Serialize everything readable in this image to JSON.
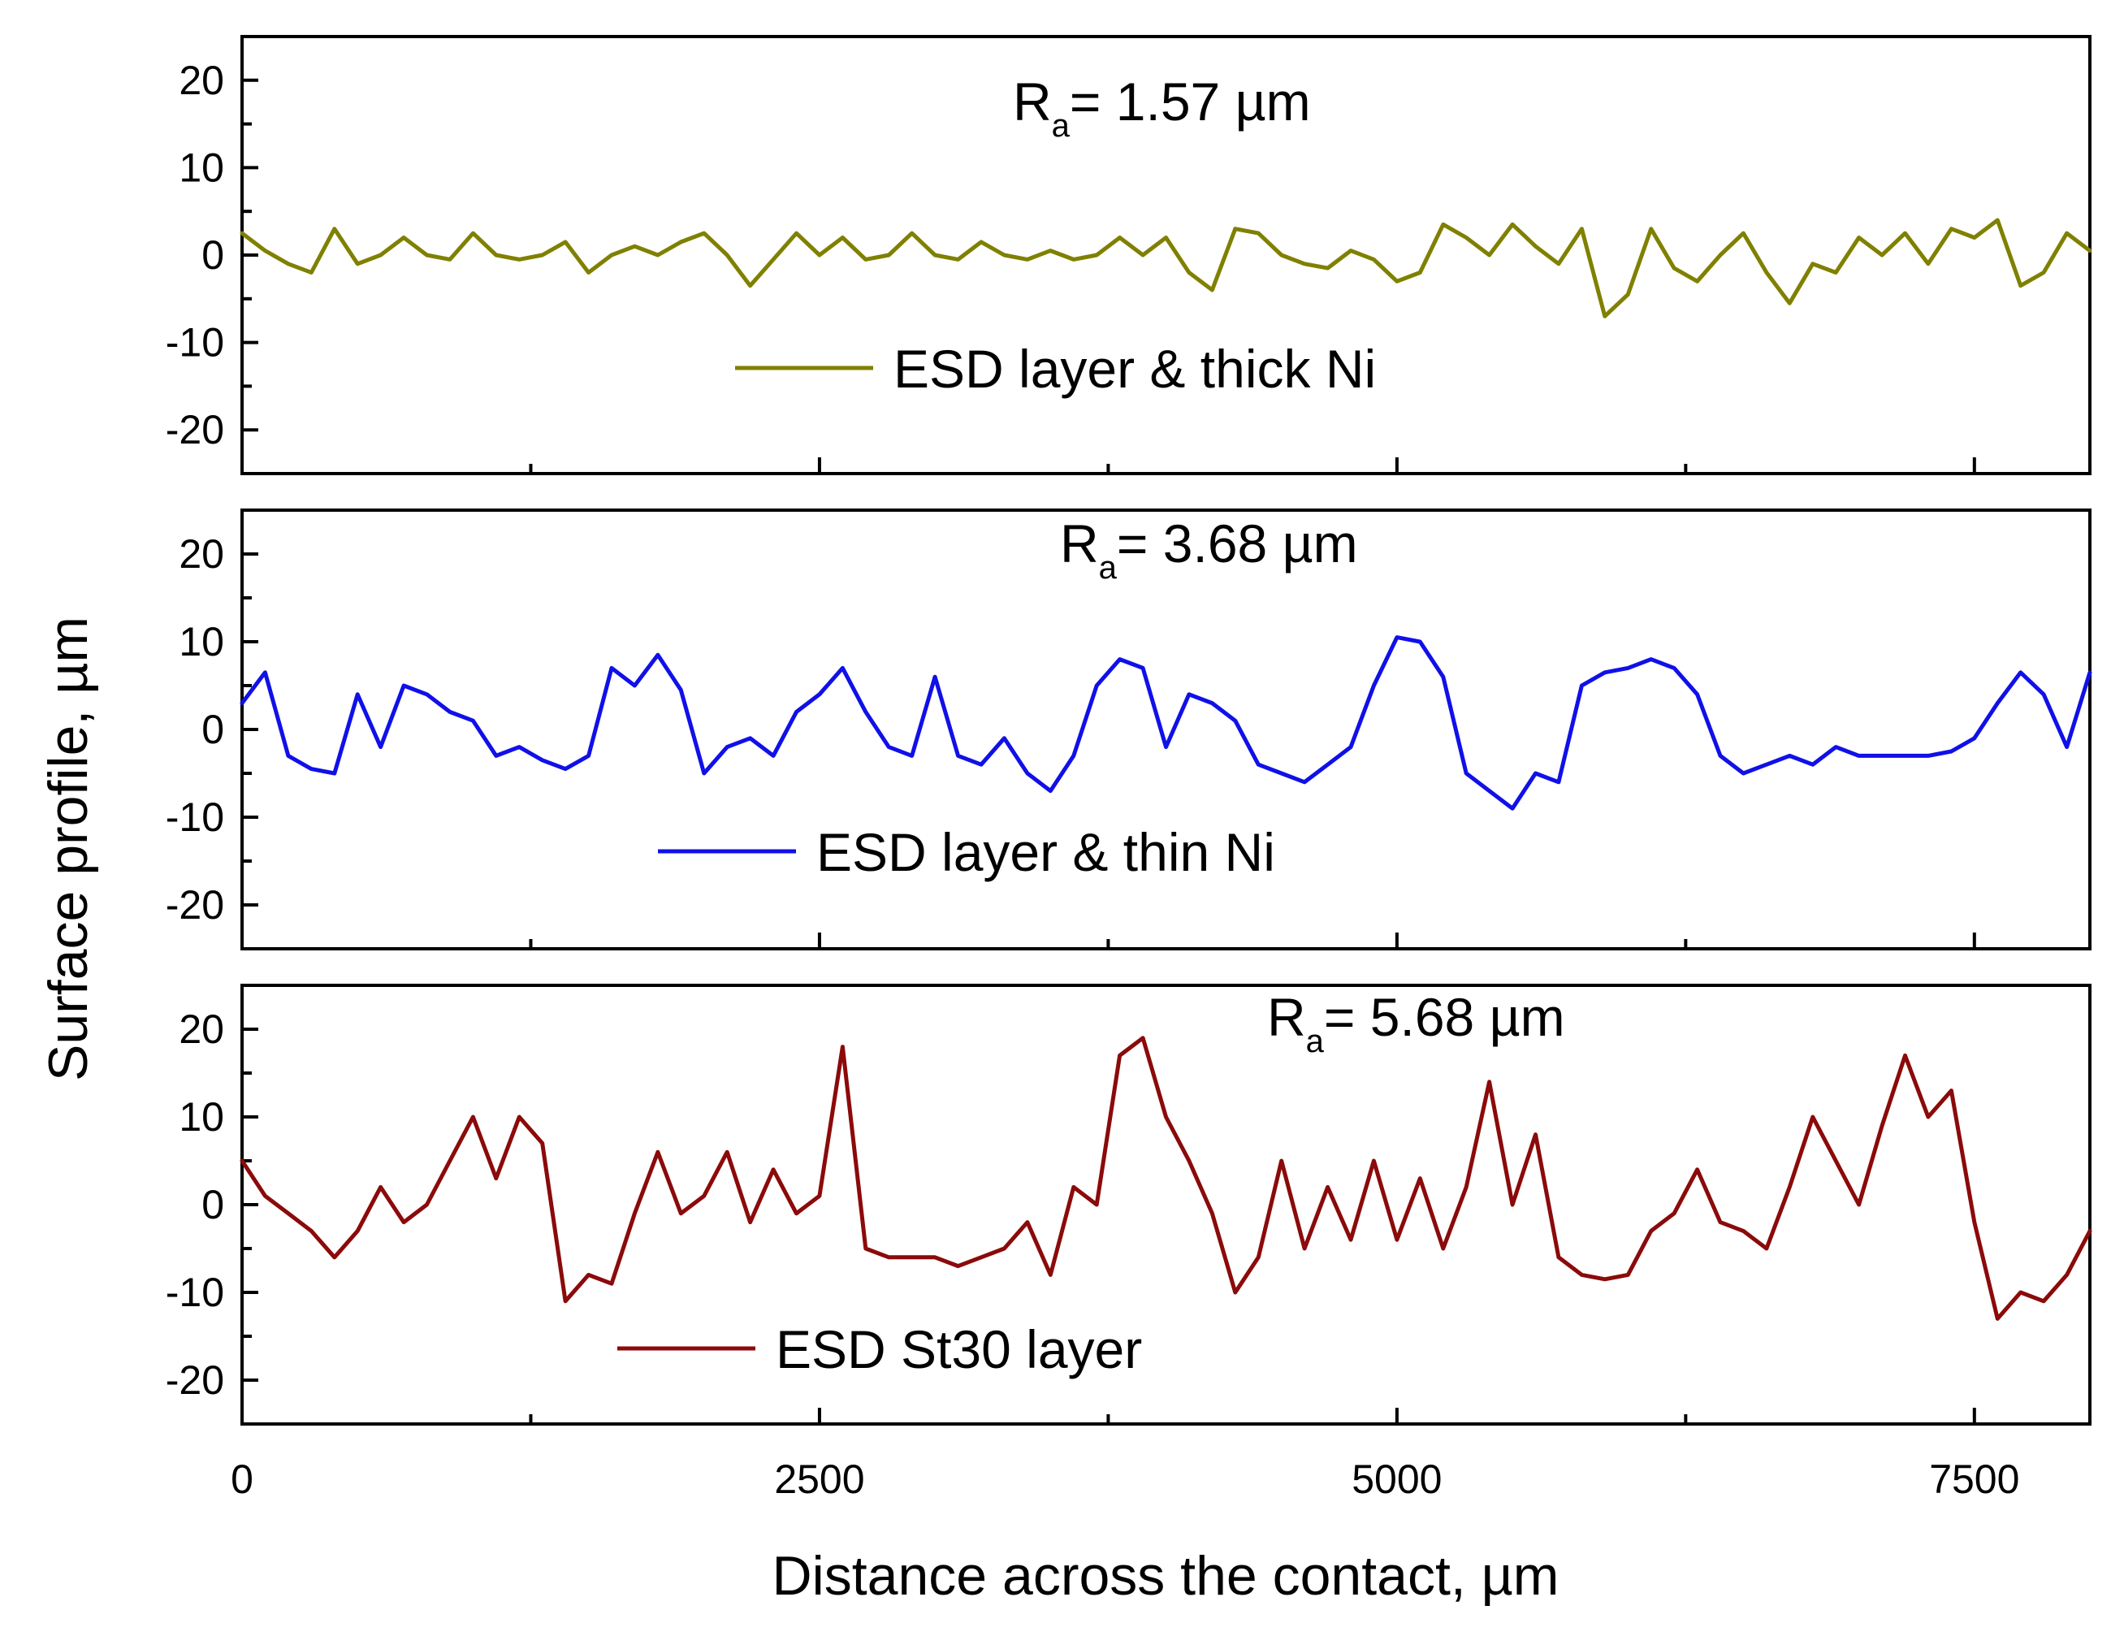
{
  "chart_data": {
    "type": "line",
    "layout": "stacked-panels",
    "xlabel": "Distance across the contact, µm",
    "ylabel": "Surface profile, µm",
    "xlim": [
      0,
      8000
    ],
    "ylim": [
      -25,
      25
    ],
    "xticks": [
      0,
      2500,
      5000,
      7500
    ],
    "xtick_labels": [
      "0",
      "2500",
      "5000",
      "7500"
    ],
    "yticks": [
      -20,
      -10,
      0,
      10,
      20
    ],
    "ytick_labels": [
      "-20",
      "-10",
      "0",
      "10",
      "20"
    ],
    "panels": [
      {
        "series_name": "ESD layer & thick Ni",
        "color": "#808000",
        "ra_symbol": "R",
        "ra_subscript": "a",
        "ra_value": "= 1.57 µm",
        "x": [
          0,
          100,
          200,
          300,
          400,
          500,
          600,
          700,
          800,
          900,
          1000,
          1100,
          1200,
          1300,
          1400,
          1500,
          1600,
          1700,
          1800,
          1900,
          2000,
          2100,
          2200,
          2300,
          2400,
          2500,
          2600,
          2700,
          2800,
          2900,
          3000,
          3100,
          3200,
          3300,
          3400,
          3500,
          3600,
          3700,
          3800,
          3900,
          4000,
          4100,
          4200,
          4300,
          4400,
          4500,
          4600,
          4700,
          4800,
          4900,
          5000,
          5100,
          5200,
          5300,
          5400,
          5500,
          5600,
          5700,
          5800,
          5900,
          6000,
          6100,
          6200,
          6300,
          6400,
          6500,
          6600,
          6700,
          6800,
          6900,
          7000,
          7100,
          7200,
          7300,
          7400,
          7500,
          7600,
          7700,
          7800,
          7900,
          8000
        ],
        "y": [
          2.5,
          0.5,
          -1,
          -2,
          3,
          -1,
          0,
          2,
          0,
          -0.5,
          2.5,
          0,
          -0.5,
          0,
          1.5,
          -2,
          0,
          1,
          0,
          1.5,
          2.5,
          0,
          -3.5,
          -0.5,
          2.5,
          0,
          2,
          -0.5,
          0,
          2.5,
          0,
          -0.5,
          1.5,
          0,
          -0.5,
          0.5,
          -0.5,
          0,
          2,
          0,
          2,
          -2,
          -4,
          3,
          2.5,
          0,
          -1,
          -1.5,
          0.5,
          -0.5,
          -3,
          -2,
          3.5,
          2,
          0,
          3.5,
          1,
          -1,
          3,
          -7,
          -4.5,
          3,
          -1.5,
          -3,
          0,
          2.5,
          -2,
          -5.5,
          -1,
          -2,
          2,
          0,
          2.5,
          -1,
          3,
          2,
          4,
          -3.5,
          -2,
          2.5,
          0.5
        ]
      },
      {
        "series_name": "ESD layer & thin Ni",
        "color": "#1010e8",
        "ra_symbol": "R",
        "ra_subscript": "a",
        "ra_value": "= 3.68 µm",
        "x": [
          0,
          100,
          200,
          300,
          400,
          500,
          600,
          700,
          800,
          900,
          1000,
          1100,
          1200,
          1300,
          1400,
          1500,
          1600,
          1700,
          1800,
          1900,
          2000,
          2100,
          2200,
          2300,
          2400,
          2500,
          2600,
          2700,
          2800,
          2900,
          3000,
          3100,
          3200,
          3300,
          3400,
          3500,
          3600,
          3700,
          3800,
          3900,
          4000,
          4100,
          4200,
          4300,
          4400,
          4500,
          4600,
          4700,
          4800,
          4900,
          5000,
          5100,
          5200,
          5300,
          5400,
          5500,
          5600,
          5700,
          5800,
          5900,
          6000,
          6100,
          6200,
          6300,
          6400,
          6500,
          6600,
          6700,
          6800,
          6900,
          7000,
          7100,
          7200,
          7300,
          7400,
          7500,
          7600,
          7700,
          7800,
          7900,
          8000
        ],
        "y": [
          3,
          6.5,
          -3,
          -4.5,
          -5,
          4,
          -2,
          5,
          4,
          2,
          1,
          -3,
          -2,
          -3.5,
          -4.5,
          -3,
          7,
          5,
          8.5,
          4.5,
          -5,
          -2,
          -1,
          -3,
          2,
          4,
          7,
          2,
          -2,
          -3,
          6,
          -3,
          -4,
          -1,
          -5,
          -7,
          -3,
          5,
          8,
          7,
          -2,
          4,
          3,
          1,
          -4,
          -5,
          -6,
          -4,
          -2,
          5,
          10.5,
          10,
          6,
          -5,
          -7,
          -9,
          -5,
          -6,
          5,
          6.5,
          7,
          8,
          7,
          4,
          -3,
          -5,
          -4,
          -3,
          -4,
          -2,
          -3,
          -3,
          -3,
          -3,
          -2.5,
          -1,
          3,
          6.5,
          4,
          -2,
          6.5
        ]
      },
      {
        "series_name": "ESD St30 layer",
        "color": "#8b0a0a",
        "ra_symbol": "R",
        "ra_subscript": "a",
        "ra_value": "= 5.68 µm",
        "x": [
          0,
          100,
          200,
          300,
          400,
          500,
          600,
          700,
          800,
          900,
          1000,
          1100,
          1200,
          1300,
          1400,
          1500,
          1600,
          1700,
          1800,
          1900,
          2000,
          2100,
          2200,
          2300,
          2400,
          2500,
          2600,
          2700,
          2800,
          2900,
          3000,
          3100,
          3200,
          3300,
          3400,
          3500,
          3600,
          3700,
          3800,
          3900,
          4000,
          4100,
          4200,
          4300,
          4400,
          4500,
          4600,
          4700,
          4800,
          4900,
          5000,
          5100,
          5200,
          5300,
          5400,
          5500,
          5600,
          5700,
          5800,
          5900,
          6000,
          6100,
          6200,
          6300,
          6400,
          6500,
          6600,
          6700,
          6800,
          6900,
          7000,
          7100,
          7200,
          7300,
          7400,
          7500,
          7600,
          7700,
          7800,
          7900,
          8000
        ],
        "y": [
          5,
          1,
          -1,
          -3,
          -6,
          -3,
          2,
          -2,
          0,
          5,
          10,
          3,
          10,
          7,
          -11,
          -8,
          -9,
          -1,
          6,
          -1,
          1,
          6,
          -2,
          4,
          -1,
          1,
          18,
          -5,
          -6,
          -6,
          -6,
          -7,
          -6,
          -5,
          -2,
          -8,
          2,
          0,
          17,
          19,
          10,
          5,
          -1,
          -10,
          -6,
          5,
          -5,
          2,
          -4,
          5,
          -4,
          3,
          -5,
          2,
          14,
          0,
          8,
          -6,
          -8,
          -8.5,
          -8,
          -3,
          -1,
          4,
          -2,
          -3,
          -5,
          2,
          10,
          5,
          0,
          9,
          17,
          10,
          13,
          -2,
          -13,
          -10,
          -11,
          -8,
          -3
        ]
      }
    ]
  }
}
